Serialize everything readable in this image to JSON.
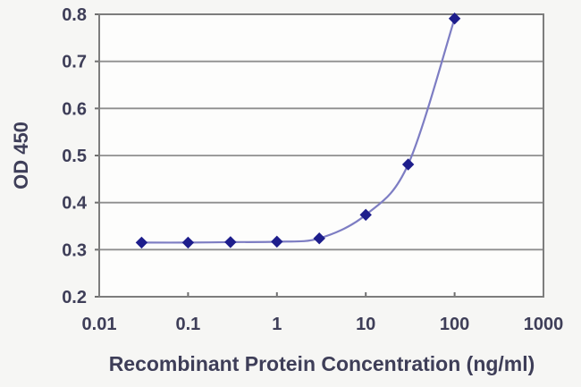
{
  "chart_data": {
    "type": "line",
    "x": [
      0.03,
      0.1,
      0.3,
      1,
      3,
      10,
      30,
      100
    ],
    "y": [
      0.315,
      0.315,
      0.316,
      0.317,
      0.324,
      0.374,
      0.481,
      0.791
    ],
    "title": "",
    "xlabel": "Recombinant Protein Concentration (ng/ml)",
    "ylabel": "OD 450",
    "xscale": "log",
    "xlim": [
      0.01,
      1000
    ],
    "ylim": [
      0.2,
      0.8
    ],
    "xticks": [
      0.01,
      0.1,
      1,
      10,
      100,
      1000
    ],
    "xtick_labels": [
      "0.01",
      "0.1",
      "1",
      "10",
      "100",
      "1000"
    ],
    "yticks": [
      0.2,
      0.3,
      0.4,
      0.5,
      0.6,
      0.7,
      0.8
    ],
    "ytick_labels": [
      "0.2",
      "0.3",
      "0.4",
      "0.5",
      "0.6",
      "0.7",
      "0.8"
    ],
    "grid": "horizontal",
    "legend": "none",
    "marker": "diamond",
    "line_color": "#7d7dc3",
    "marker_color": "#1e1e8c",
    "grid_color": "#8e8e8e",
    "text_color": "#3e3e58"
  }
}
